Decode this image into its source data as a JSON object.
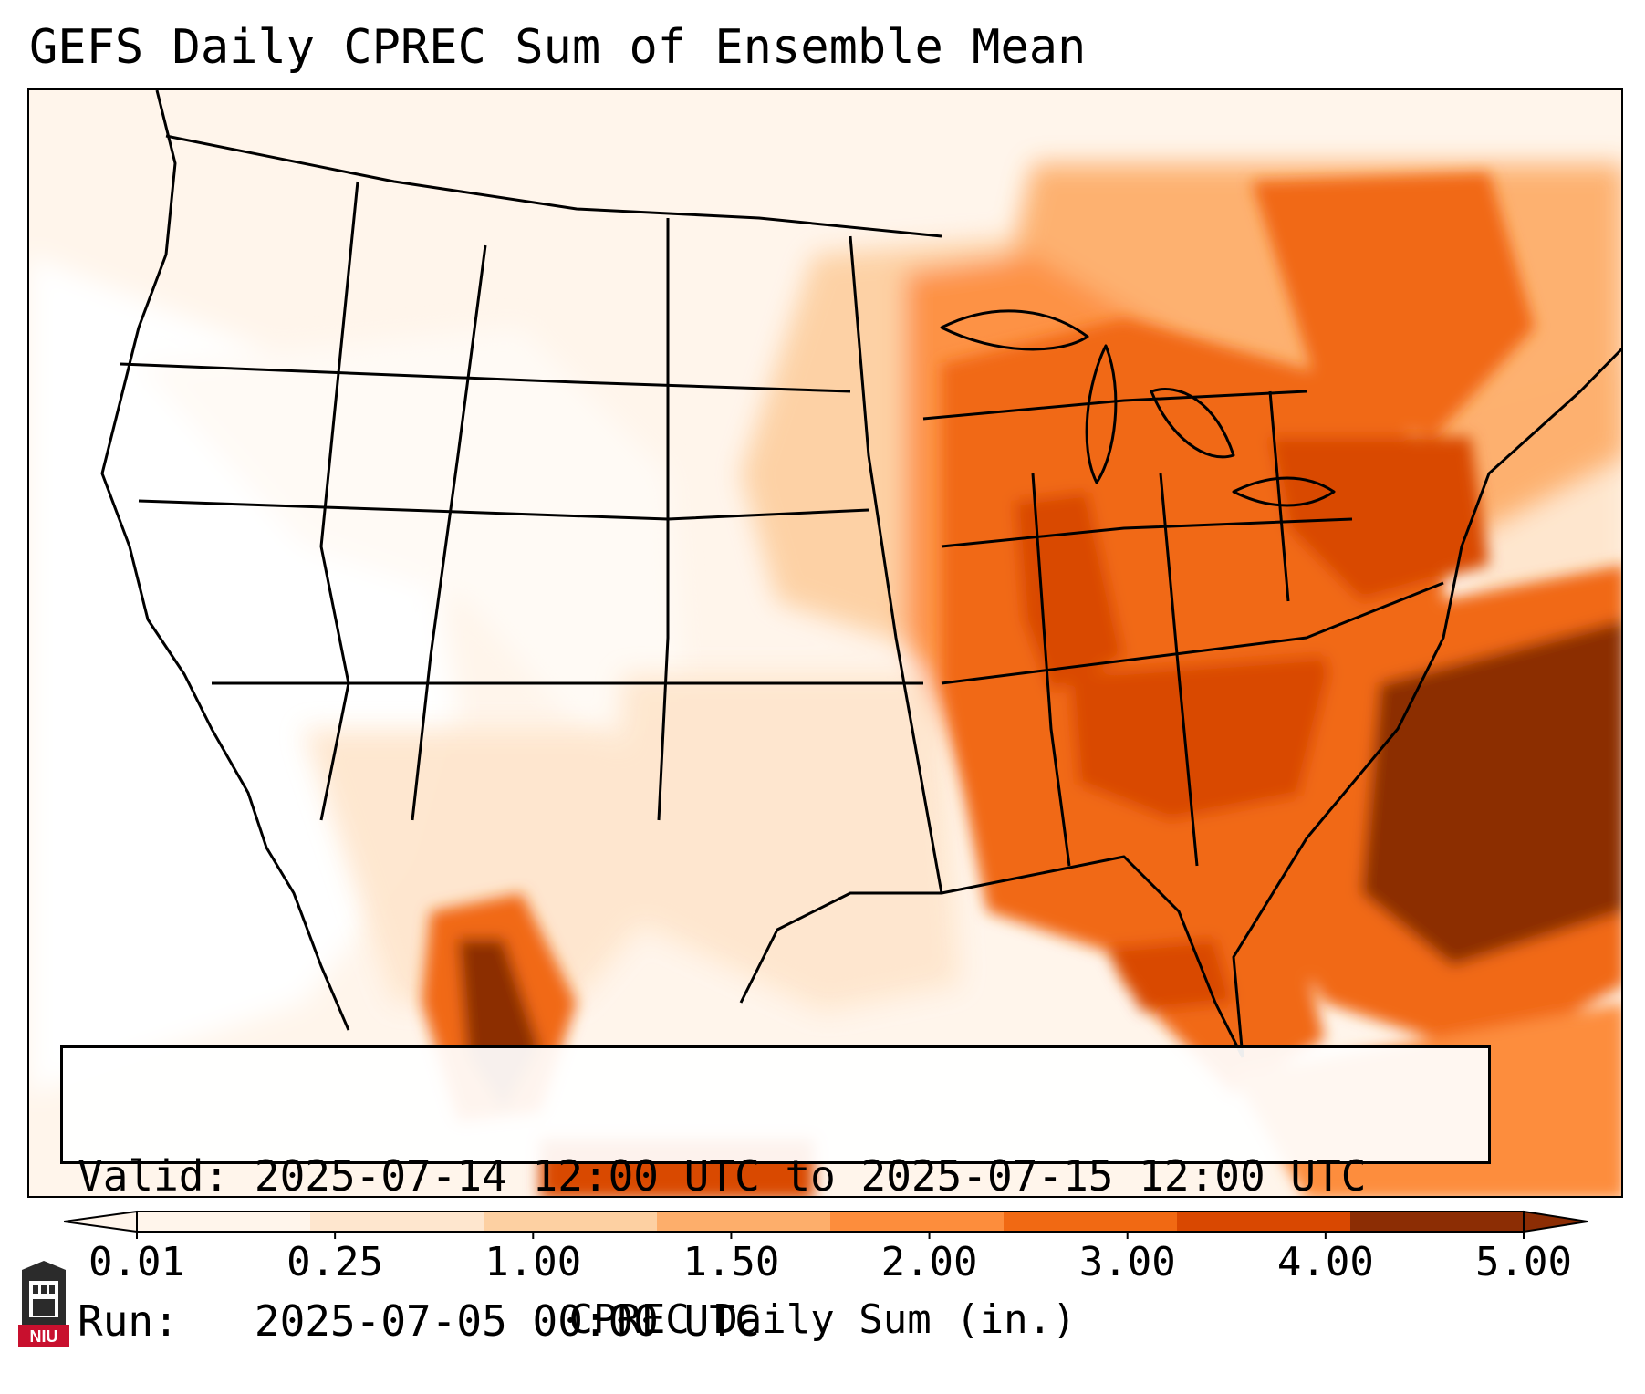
{
  "title": "GEFS Daily CPREC Sum of Ensemble Mean",
  "info": {
    "valid_label": "Valid:",
    "valid_text": "2025-07-14 12:00 UTC to 2025-07-15 12:00 UTC",
    "run_label": "Run:",
    "run_text": "2025-07-05 00:00 UTC"
  },
  "colorbar": {
    "label": "CPREC Daily Sum (in.)",
    "ticks": [
      "0.01",
      "0.25",
      "1.00",
      "1.50",
      "2.00",
      "3.00",
      "4.00",
      "5.00"
    ],
    "colors": [
      "#fff5eb",
      "#fee6ce",
      "#fdd0a2",
      "#fdae6b",
      "#fd8d3c",
      "#f16913",
      "#d94801",
      "#8c2d04"
    ],
    "extend": "both"
  },
  "map": {
    "projection": "Lambert conformal, CONUS",
    "palette": "Oranges",
    "max_region": "western Atlantic off Carolinas and southern Mexico/Sierra Madre",
    "logo_name": "NIU"
  }
}
